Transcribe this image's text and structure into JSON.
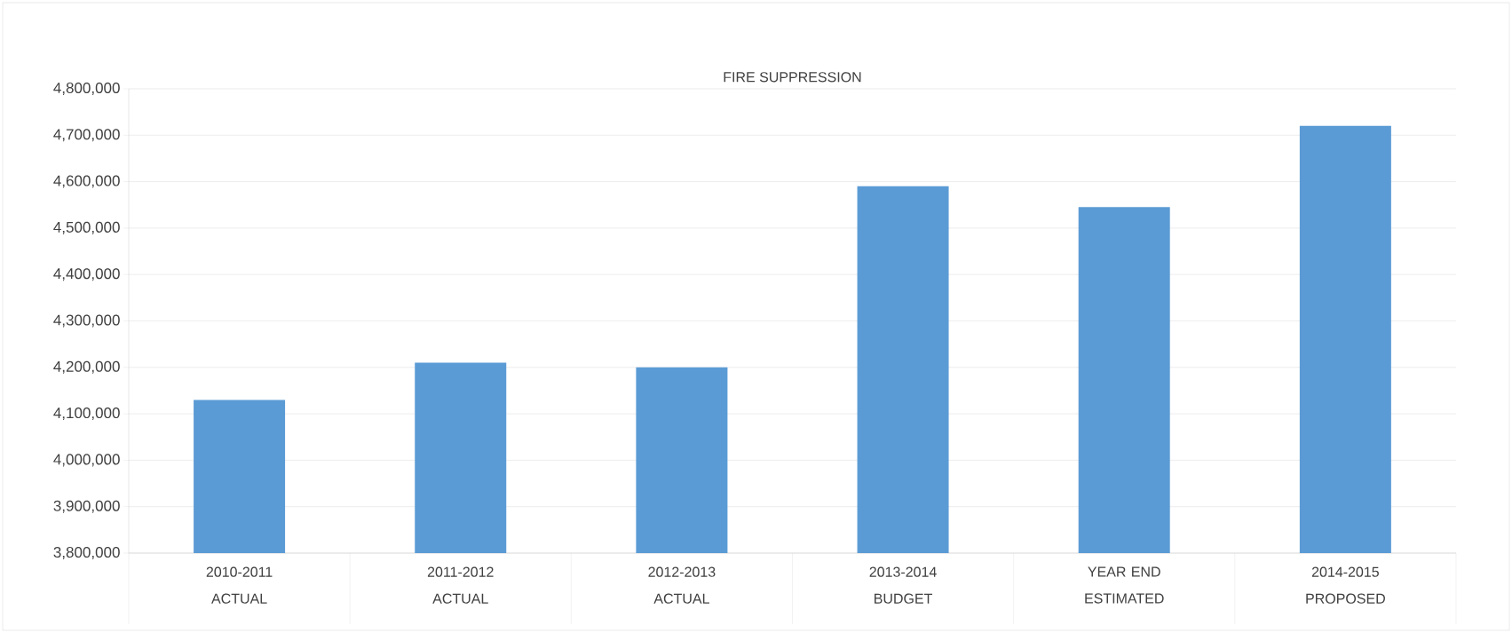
{
  "chart_data": {
    "type": "bar",
    "title": "FIRE SUPPRESSION",
    "categories": [
      "2010-2011 ACTUAL",
      "2011-2012 ACTUAL",
      "2012-2013 ACTUAL",
      "2013-2014 BUDGET",
      "YEAR END ESTIMATED",
      "2014-2015 PROPOSED"
    ],
    "values": [
      4130000,
      4210000,
      4200000,
      4590000,
      4545000,
      4720000
    ],
    "color": "#5b9bd5",
    "ylim": [
      3800000,
      4800000
    ],
    "yticks": [
      {
        "value": 3800000,
        "label": "3,800,000"
      },
      {
        "value": 3900000,
        "label": "3,900,000"
      },
      {
        "value": 4000000,
        "label": "4,000,000"
      },
      {
        "value": 4100000,
        "label": "4,100,000"
      },
      {
        "value": 4200000,
        "label": "4,200,000"
      },
      {
        "value": 4300000,
        "label": "4,300,000"
      },
      {
        "value": 4400000,
        "label": "4,400,000"
      },
      {
        "value": 4500000,
        "label": "4,500,000"
      },
      {
        "value": 4600000,
        "label": "4,600,000"
      },
      {
        "value": 4700000,
        "label": "4,700,000"
      },
      {
        "value": 4800000,
        "label": "4,800,000"
      }
    ],
    "grid": "y"
  }
}
